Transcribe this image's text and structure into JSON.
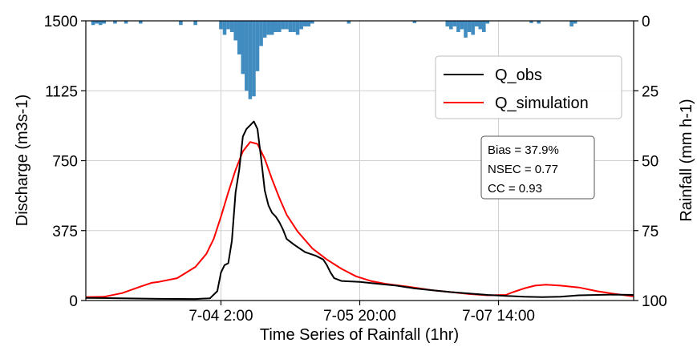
{
  "chart_data": {
    "type": "line",
    "xlabel": "Time Series of Rainfall (1hr)",
    "ylabel_left": "Discharge (m3s-1)",
    "ylabel_right": "Rainfall (mm h-1)",
    "ylim_left": [
      0,
      1500
    ],
    "ylim_right": [
      100,
      0
    ],
    "xlim": [
      0,
      150
    ],
    "grid": true,
    "x_ticks": [
      {
        "x": 37,
        "label": "7-04 2:00"
      },
      {
        "x": 75,
        "label": "7-05 20:00"
      },
      {
        "x": 113,
        "label": "7-07 14:00"
      }
    ],
    "y_ticks_left": [
      "0",
      "375",
      "750",
      "1125",
      "1500"
    ],
    "y_ticks_right": [
      "100",
      "75",
      "50",
      "25",
      "0"
    ],
    "legend": {
      "placement": "upper-right",
      "entries": [
        "Q_obs",
        "Q_simulation"
      ]
    },
    "stats": [
      "Bias = 37.9%",
      "NSEC = 0.77",
      "CC = 0.93"
    ],
    "series": [
      {
        "name": "Q_obs",
        "color": "#000000",
        "x": [
          0,
          10,
          20,
          30,
          34,
          36,
          37,
          38,
          39,
          40,
          41,
          42,
          43,
          44,
          45,
          46,
          47,
          48,
          49,
          50,
          51,
          52,
          53,
          54,
          55,
          57,
          60,
          63,
          65,
          66,
          67,
          68,
          70,
          75,
          80,
          85,
          90,
          95,
          100,
          105,
          110,
          115,
          120,
          125,
          130,
          135,
          140,
          145,
          150
        ],
        "values": [
          14,
          12,
          9,
          8,
          12,
          50,
          150,
          190,
          200,
          320,
          580,
          700,
          880,
          920,
          940,
          960,
          920,
          760,
          590,
          510,
          470,
          450,
          420,
          380,
          330,
          300,
          260,
          240,
          220,
          190,
          150,
          120,
          105,
          100,
          90,
          80,
          65,
          55,
          45,
          38,
          30,
          25,
          20,
          18,
          20,
          28,
          30,
          32,
          30
        ]
      },
      {
        "name": "Q_simulation",
        "color": "#ff0000",
        "x": [
          0,
          5,
          10,
          15,
          18,
          20,
          25,
          30,
          33,
          35,
          37,
          39,
          41,
          43,
          45,
          47,
          49,
          51,
          53,
          55,
          58,
          62,
          66,
          70,
          74,
          78,
          82,
          88,
          95,
          100,
          105,
          110,
          115,
          117,
          120,
          123,
          126,
          130,
          135,
          140,
          145,
          150
        ],
        "values": [
          18,
          20,
          40,
          75,
          95,
          100,
          120,
          180,
          250,
          330,
          450,
          580,
          700,
          800,
          850,
          840,
          760,
          650,
          550,
          460,
          370,
          280,
          220,
          170,
          130,
          105,
          90,
          75,
          55,
          45,
          35,
          28,
          30,
          45,
          65,
          80,
          85,
          80,
          70,
          50,
          35,
          22
        ]
      }
    ],
    "rainfall": {
      "name": "Rainfall",
      "color": "#1f77b4",
      "x": [
        2,
        3,
        4,
        5,
        8,
        11,
        15,
        26,
        30,
        37,
        38,
        39,
        40,
        41,
        42,
        43,
        44,
        45,
        46,
        47,
        48,
        49,
        50,
        51,
        52,
        53,
        54,
        55,
        56,
        57,
        58,
        59,
        60,
        61,
        62,
        72,
        90,
        99,
        100,
        101,
        102,
        103,
        104,
        105,
        106,
        107,
        108,
        109,
        110,
        122,
        124,
        133,
        134
      ],
      "values": [
        1.5,
        1,
        1.5,
        1,
        1,
        1,
        1,
        1.5,
        1.5,
        3,
        5,
        3,
        4,
        7,
        12,
        19,
        25,
        28,
        27,
        18,
        9,
        6,
        5,
        5,
        4,
        4,
        3,
        3,
        4,
        4,
        5,
        3,
        2,
        2,
        1,
        1,
        0.8,
        2,
        3,
        2,
        4,
        3,
        6,
        4,
        5,
        2,
        3,
        4,
        1,
        0.8,
        1,
        2,
        1
      ]
    }
  }
}
